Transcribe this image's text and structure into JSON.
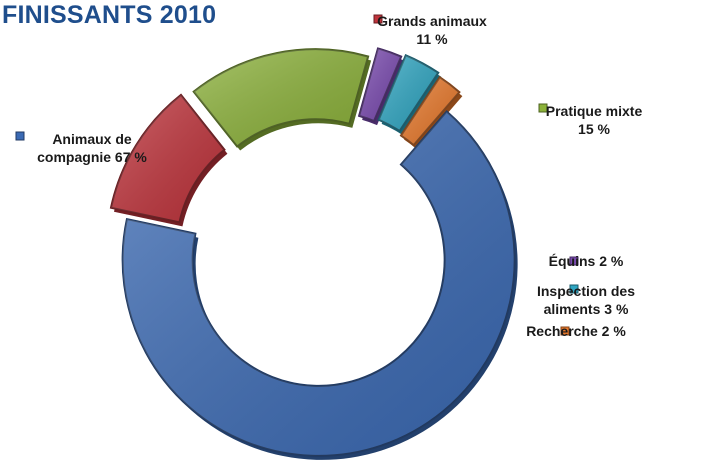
{
  "title": "FINISSANTS 2010",
  "chart_data": {
    "type": "pie",
    "variant": "exploded-donut",
    "title": "FINISSANTS 2010",
    "unit": "%",
    "slices": [
      {
        "name": "Grands animaux",
        "value": 11,
        "label_lines": [
          "Grands animaux",
          "11 %"
        ],
        "color": "#c0343c"
      },
      {
        "name": "Pratique mixte",
        "value": 15,
        "label_lines": [
          "Pratique mixte",
          "15 %"
        ],
        "color": "#8cb23a"
      },
      {
        "name": "Équins",
        "value": 2,
        "label_lines": [
          "Équins 2 %"
        ],
        "color": "#7a4ab0"
      },
      {
        "name": "Inspection des aliments",
        "value": 3,
        "label_lines": [
          "Inspection des",
          "aliments 3 %"
        ],
        "color": "#2fa6c2"
      },
      {
        "name": "Recherche",
        "value": 2,
        "label_lines": [
          "Recherche 2 %"
        ],
        "color": "#e8782a"
      },
      {
        "name": "Animaux de compagnie",
        "value": 67,
        "label_lines": [
          "Animaux de",
          "compagnie 67 %"
        ],
        "color": "#3b6ab4"
      }
    ]
  }
}
